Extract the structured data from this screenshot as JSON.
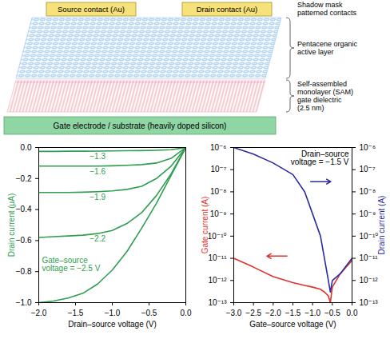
{
  "diagram": {
    "contacts": [
      "Source contact (Au)",
      "Drain contact (Au)"
    ],
    "layer_labels": [
      "Shadow mask patterned contacts",
      "Pentacene organic active layer",
      "Self-assembled monolayer (SAM) gate dielectric (2.5 nm)"
    ],
    "substrate": "Gate electrode / substrate (heavily doped silicon)"
  },
  "chart_data": [
    {
      "type": "line",
      "xlabel": "Drain–source voltage (V)",
      "x": [
        -2.0,
        -1.8,
        -1.6,
        -1.4,
        -1.2,
        -1.0,
        -0.8,
        -0.6,
        -0.4,
        -0.2,
        0.0
      ],
      "series": [
        {
          "name": "−1.3",
          "color": "#2e9e4f",
          "values": [
            -0.025,
            -0.025,
            -0.024,
            -0.024,
            -0.023,
            -0.022,
            -0.021,
            -0.02,
            -0.018,
            -0.014,
            0.0
          ]
        },
        {
          "name": "−1.6",
          "color": "#2e9e4f",
          "values": [
            -0.12,
            -0.12,
            -0.12,
            -0.12,
            -0.12,
            -0.118,
            -0.115,
            -0.11,
            -0.1,
            -0.07,
            0.0
          ]
        },
        {
          "name": "−1.9",
          "color": "#2e9e4f",
          "values": [
            -0.29,
            -0.29,
            -0.29,
            -0.288,
            -0.285,
            -0.28,
            -0.27,
            -0.25,
            -0.2,
            -0.12,
            0.0
          ]
        },
        {
          "name": "−2.2",
          "color": "#2e9e4f",
          "values": [
            -0.58,
            -0.575,
            -0.57,
            -0.565,
            -0.555,
            -0.535,
            -0.49,
            -0.42,
            -0.31,
            -0.17,
            0.0
          ]
        },
        {
          "name": "Gate–source voltage = −2.5 V",
          "color": "#2e9e4f",
          "values": [
            -1.0,
            -0.99,
            -0.97,
            -0.94,
            -0.88,
            -0.79,
            -0.67,
            -0.52,
            -0.36,
            -0.18,
            0.0
          ]
        }
      ],
      "ylabel": "Drain current (μA)",
      "xlim": [
        -2.0,
        0.0
      ],
      "xticks": [
        {
          "value": -2.0,
          "label": "−2.0"
        },
        {
          "value": -1.5,
          "label": "−1.5"
        },
        {
          "value": -1.0,
          "label": "−1.0"
        },
        {
          "value": -0.5,
          "label": "−0.5"
        },
        {
          "value": 0.0,
          "label": "0.0"
        }
      ],
      "ylim": [
        -1.0,
        0.0
      ],
      "yticks": [
        {
          "value": -1.0,
          "label": "−1.0"
        },
        {
          "value": -0.8,
          "label": "−0.8"
        },
        {
          "value": -0.6,
          "label": "−0.6"
        },
        {
          "value": -0.4,
          "label": "−0.4"
        },
        {
          "value": -0.2,
          "label": "−0.2"
        },
        {
          "value": 0.0,
          "label": "0.0"
        }
      ]
    },
    {
      "type": "line",
      "log": "y",
      "annotation": "Drain–source voltage = −1.5 V",
      "xlabel": "Gate–source voltage (V)",
      "x": [
        -3.0,
        -2.5,
        -2.0,
        -1.5,
        -1.2,
        -1.0,
        -0.8,
        -0.7,
        -0.6,
        -0.55,
        -0.5,
        -0.3,
        0.0
      ],
      "series": [
        {
          "name": "Gate current (A)",
          "color": "#e0312b",
          "values": [
            1e-11,
            4e-12,
            1.5e-12,
            8e-13,
            6e-13,
            5e-13,
            4e-13,
            3e-13,
            2e-13,
            1e-13,
            5e-13,
            2e-12,
            8e-12
          ]
        },
        {
          "name": "Drain current (A)",
          "color": "#2b2ba0",
          "axis": "y2",
          "values": [
            1e-06,
            5e-07,
            2e-07,
            6e-08,
            1e-08,
            1e-09,
            1e-10,
            1e-11,
            1e-12,
            3e-13,
            1e-12,
            2e-12,
            1e-11
          ]
        }
      ],
      "xlim": [
        -3.0,
        0.0
      ],
      "xticks": [
        {
          "value": -3.0,
          "label": "−3.0"
        },
        {
          "value": -2.5,
          "label": "−2.5"
        },
        {
          "value": -2.0,
          "label": "−2.0"
        },
        {
          "value": -1.5,
          "label": "−1.5"
        },
        {
          "value": -1.0,
          "label": "−1.0"
        },
        {
          "value": -0.5,
          "label": "−0.5"
        },
        {
          "value": 0.0,
          "label": "0.0"
        }
      ],
      "ylim": [
        1e-13,
        1e-06
      ],
      "yticks": [
        {
          "value": 1e-13,
          "label": "10⁻¹³"
        },
        {
          "value": 1e-12,
          "label": "10⁻¹²"
        },
        {
          "value": 1e-11,
          "label": "10⁻¹¹"
        },
        {
          "value": 1e-10,
          "label": "10⁻¹⁰"
        },
        {
          "value": 1e-09,
          "label": "10⁻⁹"
        },
        {
          "value": 1e-08,
          "label": "10⁻⁸"
        },
        {
          "value": 1e-07,
          "label": "10⁻⁷"
        },
        {
          "value": 1e-06,
          "label": "10⁻⁶"
        }
      ],
      "y2lim": [
        1e-13,
        1e-06
      ],
      "y2ticks": [
        {
          "value": 1e-13,
          "label": "10⁻¹³"
        },
        {
          "value": 1e-12,
          "label": "10⁻¹²"
        },
        {
          "value": 1e-11,
          "label": "10⁻¹¹"
        },
        {
          "value": 1e-10,
          "label": "10⁻¹⁰"
        },
        {
          "value": 1e-09,
          "label": "10⁻⁹"
        },
        {
          "value": 1e-08,
          "label": "10⁻⁸"
        },
        {
          "value": 1e-07,
          "label": "10⁻⁷"
        },
        {
          "value": 1e-06,
          "label": "10⁻⁶"
        }
      ]
    }
  ]
}
